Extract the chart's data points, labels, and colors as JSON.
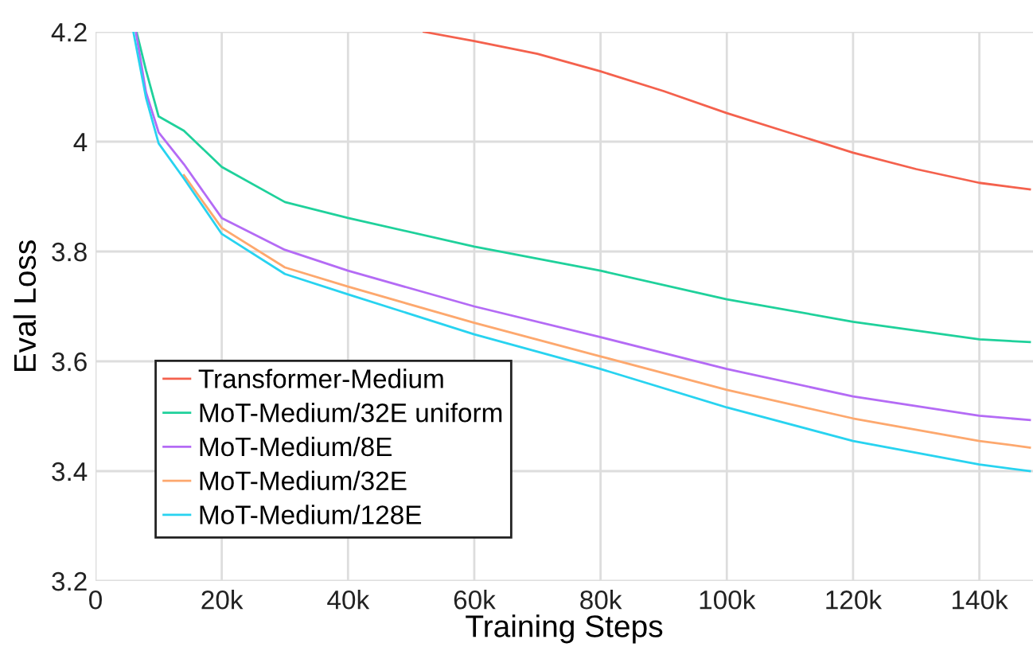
{
  "chart_data": {
    "type": "line",
    "xlabel": "Training Steps",
    "ylabel": "Eval Loss",
    "xlim": [
      0,
      148500
    ],
    "ylim": [
      3.2,
      4.2
    ],
    "xticks": [
      0,
      {
        "value": 20000,
        "label": "20k"
      },
      {
        "value": 40000,
        "label": "40k"
      },
      {
        "value": 60000,
        "label": "60k"
      },
      {
        "value": 80000,
        "label": "80k"
      },
      {
        "value": 100000,
        "label": "100k"
      },
      {
        "value": 120000,
        "label": "120k"
      },
      {
        "value": 140000,
        "label": "140k"
      }
    ],
    "yticks": [
      3.2,
      3.4,
      3.6,
      3.8,
      4,
      4.2
    ],
    "grid": true,
    "legend": "bottom left",
    "marker": "none",
    "line_style": "solid",
    "series": [
      {
        "name": "Transformer-Medium",
        "color": "#f4614d",
        "x": [
          52000,
          60000,
          70000,
          80000,
          90000,
          100000,
          110000,
          120000,
          130000,
          140000,
          148000
        ],
        "values": [
          4.2,
          4.183,
          4.16,
          4.128,
          4.092,
          4.052,
          4.016,
          3.98,
          3.95,
          3.925,
          3.913
        ]
      },
      {
        "name": "MoT-Medium/32E uniform",
        "color": "#1fd19b",
        "x": [
          6500,
          8000,
          10000,
          14000,
          20000,
          30000,
          40000,
          60000,
          80000,
          100000,
          120000,
          140000,
          148000
        ],
        "values": [
          4.2,
          4.13,
          4.046,
          4.02,
          3.954,
          3.89,
          3.861,
          3.809,
          3.765,
          3.713,
          3.672,
          3.64,
          3.635
        ]
      },
      {
        "name": "MoT-Medium/8E",
        "color": "#b46bf5",
        "x": [
          6400,
          8000,
          10000,
          14000,
          20000,
          30000,
          40000,
          60000,
          80000,
          100000,
          120000,
          140000,
          148000
        ],
        "values": [
          4.2,
          4.09,
          4.017,
          3.959,
          3.861,
          3.803,
          3.765,
          3.7,
          3.644,
          3.586,
          3.536,
          3.501,
          3.493
        ]
      },
      {
        "name": "MoT-Medium/32E",
        "color": "#fda86e",
        "x": [
          14000,
          20000,
          30000,
          40000,
          60000,
          80000,
          100000,
          120000,
          140000,
          148000
        ],
        "values": [
          3.939,
          3.843,
          3.771,
          3.736,
          3.67,
          3.609,
          3.548,
          3.496,
          3.455,
          3.443
        ]
      },
      {
        "name": "MoT-Medium/128E",
        "color": "#28d3f0",
        "x": [
          6000,
          8000,
          10000,
          14000,
          20000,
          30000,
          40000,
          60000,
          80000,
          100000,
          120000,
          140000,
          148000
        ],
        "values": [
          4.2,
          4.08,
          3.997,
          3.933,
          3.832,
          3.759,
          3.722,
          3.649,
          3.586,
          3.516,
          3.455,
          3.412,
          3.4
        ]
      }
    ]
  }
}
